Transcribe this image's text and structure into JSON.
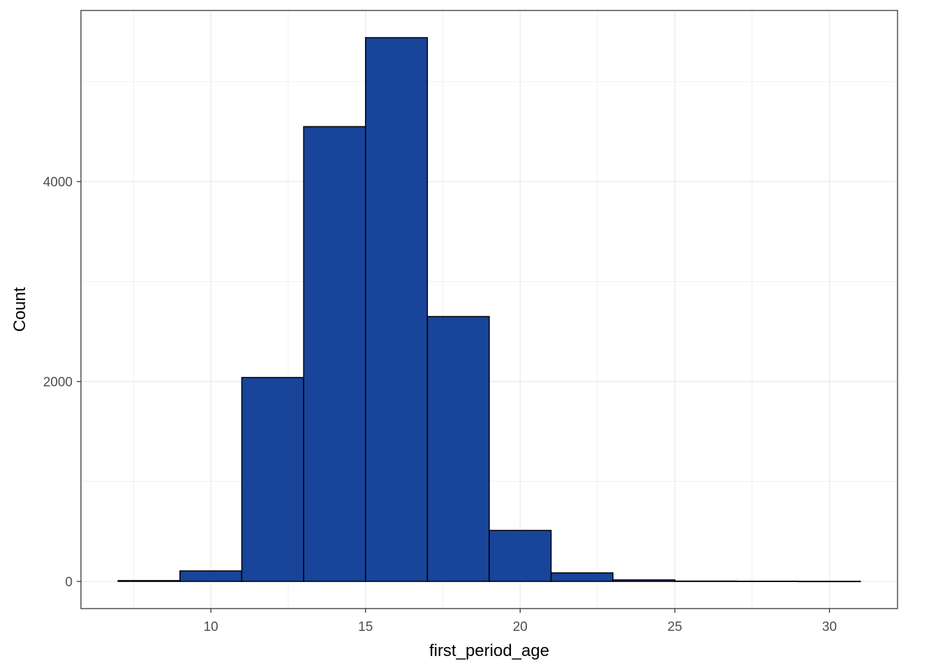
{
  "chart_data": {
    "type": "bar",
    "subtype": "histogram",
    "bins": [
      {
        "x0": 7,
        "x1": 9,
        "count": 8
      },
      {
        "x0": 9,
        "x1": 11,
        "count": 105
      },
      {
        "x0": 11,
        "x1": 13,
        "count": 2040
      },
      {
        "x0": 13,
        "x1": 15,
        "count": 4550
      },
      {
        "x0": 15,
        "x1": 17,
        "count": 5440
      },
      {
        "x0": 17,
        "x1": 19,
        "count": 2650
      },
      {
        "x0": 19,
        "x1": 21,
        "count": 510
      },
      {
        "x0": 21,
        "x1": 23,
        "count": 85
      },
      {
        "x0": 23,
        "x1": 25,
        "count": 15
      },
      {
        "x0": 25,
        "x1": 27,
        "count": 3
      },
      {
        "x0": 27,
        "x1": 29,
        "count": 2
      },
      {
        "x0": 29,
        "x1": 31,
        "count": 1
      }
    ],
    "xlabel": "first_period_age",
    "ylabel": "Count",
    "x_ticks": [
      10,
      15,
      20,
      25,
      30
    ],
    "y_ticks": [
      0,
      2000,
      4000
    ],
    "xlim": [
      5.8,
      32.2
    ],
    "ylim": [
      -272,
      5712
    ],
    "grid": true,
    "colors": {
      "bar_fill": "#184499",
      "bar_stroke": "#000000",
      "grid": "#ebebeb",
      "panel_border": "#333333",
      "tick_label": "#4d4d4d"
    }
  }
}
